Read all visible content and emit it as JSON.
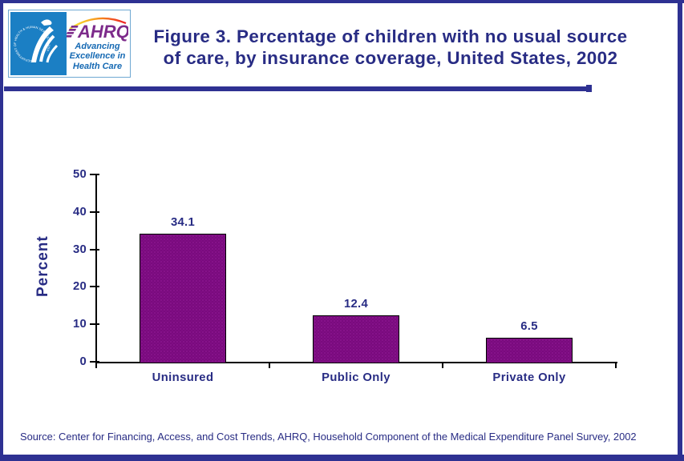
{
  "header": {
    "logo": {
      "hhs_seal_text": "DEPARTMENT OF HEALTH & HUMAN SERVICES USA",
      "ahrq_acronym": "AHRQ",
      "tagline_line1": "Advancing",
      "tagline_line2": "Excellence in",
      "tagline_line3": "Health Care"
    },
    "title_line1": "Figure 3. Percentage of children with no usual source",
    "title_line2": "of care, by insurance coverage, United States, 2002"
  },
  "chart_data": {
    "type": "bar",
    "categories": [
      "Uninsured",
      "Public Only",
      "Private Only"
    ],
    "values": [
      34.1,
      12.4,
      6.5
    ],
    "value_labels": [
      "34.1",
      "12.4",
      "6.5"
    ],
    "title": "Figure 3. Percentage of children with no usual source of care, by insurance coverage, United States, 2002",
    "xlabel": "",
    "ylabel": "Percent",
    "ylim": [
      0,
      50
    ],
    "yticks": [
      0,
      10,
      20,
      30,
      40,
      50
    ],
    "grid": false,
    "legend": false,
    "bar_color": "#7A0B7A"
  },
  "source_note": "Source: Center for Financing, Access, and Cost Trends, AHRQ, Household Component of the Medical Expenditure Panel Survey, 2002",
  "colors": {
    "navy": "#2E3192",
    "text_navy": "#282C84",
    "bar_purple": "#7A0B7A",
    "hhs_blue": "#1B7FC4",
    "ahrq_purple": "#7D2B8B",
    "tagline_blue": "#1569B3"
  }
}
